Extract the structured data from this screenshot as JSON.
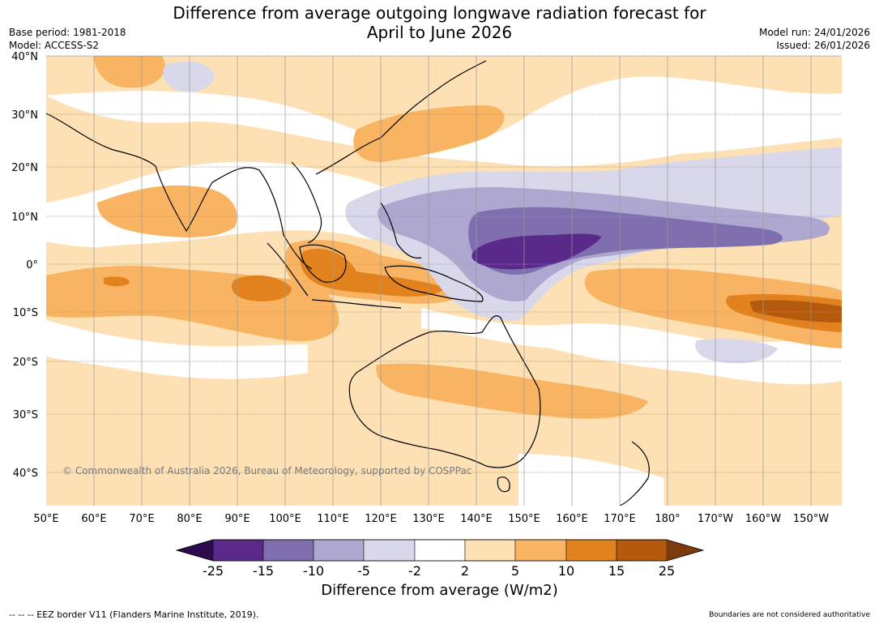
{
  "header": {
    "title_line1": "Difference from average outgoing longwave radiation forecast for",
    "title_line2": "April to June 2026",
    "base_period": "Base period: 1981-2018",
    "model": "Model: ACCESS-S2",
    "model_run": "Model run: 24/01/2026",
    "issued": "Issued: 26/01/2026"
  },
  "map": {
    "lat_labels": [
      "40°N",
      "30°N",
      "20°N",
      "10°N",
      "0°",
      "10°S",
      "20°S",
      "30°S",
      "40°S"
    ],
    "lon_labels": [
      "50°E",
      "60°E",
      "70°E",
      "80°E",
      "90°E",
      "100°E",
      "110°E",
      "120°E",
      "130°E",
      "140°E",
      "150°E",
      "160°E",
      "170°E",
      "180°",
      "170°W",
      "160°W",
      "150°W"
    ],
    "copyright": "© Commonwealth of Australia 2026, Bureau of Meteorology, supported by COSPPac"
  },
  "colorbar": {
    "title": "Difference from average (W/m2)",
    "ticks": [
      "-25",
      "-15",
      "-10",
      "-5",
      "-2",
      "2",
      "5",
      "10",
      "15",
      "25"
    ],
    "colors": [
      "#5a2a8a",
      "#7f6fae",
      "#aea7d0",
      "#d8d8ea",
      "#ffffff",
      "#fde0b4",
      "#f8b462",
      "#e1821e",
      "#b35a0e"
    ],
    "under_color": "#2d0a4e",
    "over_color": "#7d3a0c"
  },
  "footer": {
    "eez_legend": "--  --  -- EEZ border V11 (Flanders Marine Institute, 2019).",
    "disclaimer": "Boundaries are not considered authoritative"
  }
}
